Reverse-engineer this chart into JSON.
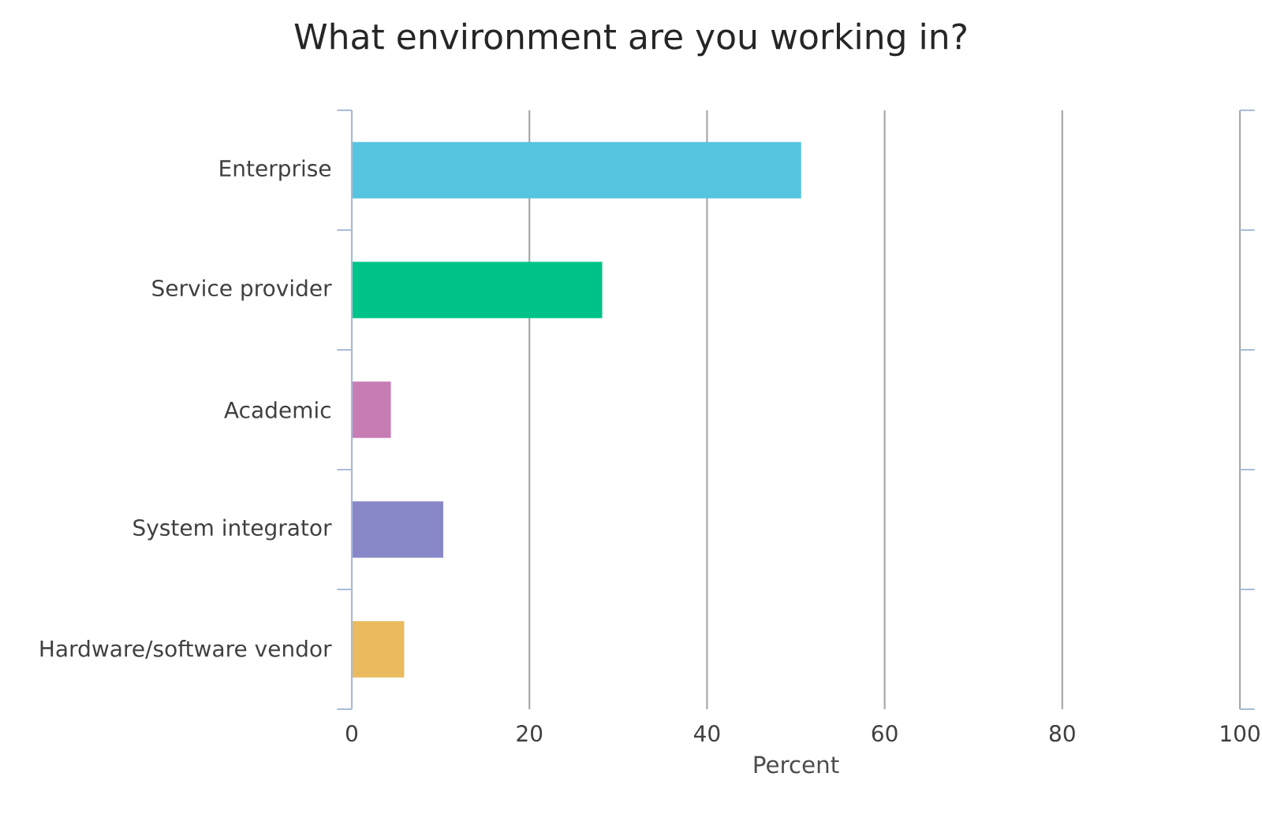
{
  "chart_data": {
    "type": "bar",
    "orientation": "horizontal",
    "title": "What environment are you working in?",
    "xlabel": "Percent",
    "categories": [
      "Enterprise",
      "Service provider",
      "Academic",
      "System integrator",
      "Hardware/software vendor"
    ],
    "values": [
      50.6,
      28.2,
      4.4,
      10.3,
      5.9
    ],
    "colors": [
      "#55c4de",
      "#00c389",
      "#c77cb4",
      "#8888c8",
      "#e9bb5e"
    ],
    "xlim": [
      0,
      100
    ],
    "xticks": [
      0,
      20,
      40,
      60,
      80,
      100
    ],
    "grid": "x"
  }
}
